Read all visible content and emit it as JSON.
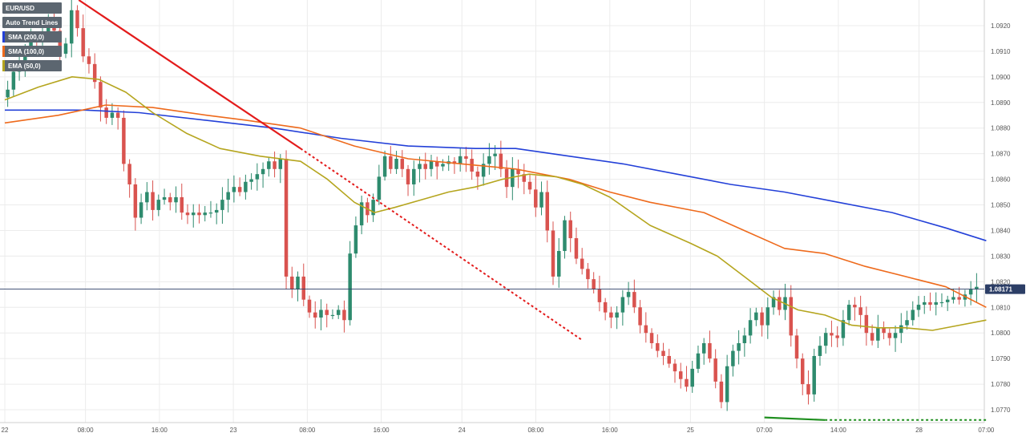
{
  "colors": {
    "up": "#2e8b6e",
    "down": "#d9534f",
    "sma200": "#2340d8",
    "sma100": "#ee6a1c",
    "ema50": "#b5a51e",
    "trend_main": "#e31b1b",
    "support": "#1f8f1f",
    "current": "#2c3e66",
    "grid": "#ececec"
  },
  "legend": [
    {
      "label": "EUR/USD",
      "color": ""
    },
    {
      "label": "Auto Trend Lines",
      "color": ""
    },
    {
      "label": "SMA (200,0)",
      "color": "#2340d8"
    },
    {
      "label": "SMA (100,0)",
      "color": "#ee6a1c"
    },
    {
      "label": "EMA (50,0)",
      "color": "#b5a51e"
    }
  ],
  "current_price_label": "1.08171",
  "chart_data": {
    "type": "line",
    "ylim": [
      1.0765,
      1.093
    ],
    "xlim": [
      0,
      145
    ],
    "x_ticks": [
      {
        "x": 0,
        "label": "22"
      },
      {
        "x": 12,
        "label": "08:00"
      },
      {
        "x": 23,
        "label": "16:00"
      },
      {
        "x": 34,
        "label": "23"
      },
      {
        "x": 45,
        "label": "08:00"
      },
      {
        "x": 56,
        "label": "16:00"
      },
      {
        "x": 68,
        "label": "24"
      },
      {
        "x": 79,
        "label": "08:00"
      },
      {
        "x": 90,
        "label": "16:00"
      },
      {
        "x": 102,
        "label": "25"
      },
      {
        "x": 113,
        "label": "07:00"
      },
      {
        "x": 124,
        "label": "14:00"
      },
      {
        "x": 136,
        "label": "28"
      },
      {
        "x": 146,
        "label": "07:00"
      }
    ],
    "y_ticks": [
      1.077,
      1.078,
      1.079,
      1.08,
      1.081,
      1.082,
      1.083,
      1.084,
      1.085,
      1.086,
      1.087,
      1.088,
      1.089,
      1.09,
      1.091,
      1.092
    ],
    "y_tick_labels": [
      "1.0770",
      "1.0780",
      "1.0790",
      "1.0800",
      "1.0810",
      "1.0820",
      "1.0830",
      "1.0840",
      "1.0850",
      "1.0860",
      "1.0870",
      "1.0880",
      "1.0890",
      "1.0900",
      "1.0910",
      "1.0920"
    ],
    "current_price": 1.08171,
    "candles_close": [
      1.0895,
      1.0902,
      1.0905,
      1.0911,
      1.0915,
      1.0914,
      1.0916,
      1.0921,
      1.0918,
      1.0909,
      1.0913,
      1.0926,
      1.0919,
      1.0908,
      1.0905,
      1.0898,
      1.0888,
      1.0884,
      1.0886,
      1.0884,
      1.0866,
      1.0858,
      1.0845,
      1.0851,
      1.0855,
      1.0848,
      1.0852,
      1.0853,
      1.0851,
      1.0853,
      1.0847,
      1.0846,
      1.0847,
      1.0846,
      1.0847,
      1.0847,
      1.0848,
      1.0852,
      1.0855,
      1.0857,
      1.0855,
      1.0859,
      1.086,
      1.0862,
      1.0864,
      1.0867,
      1.0864,
      1.0868,
      1.0822,
      1.0817,
      1.0822,
      1.0813,
      1.0808,
      1.0806,
      1.0809,
      1.0807,
      1.0807,
      1.0809,
      1.0805,
      1.0831,
      1.0842,
      1.0851,
      1.0846,
      1.0852,
      1.0861,
      1.0869,
      1.0864,
      1.0868,
      1.0864,
      1.0858,
      1.0864,
      1.0866,
      1.0864,
      1.0867,
      1.0865,
      1.0866,
      1.0867,
      1.0866,
      1.0869,
      1.0868,
      1.0863,
      1.0861,
      1.0866,
      1.0869,
      1.087,
      1.0864,
      1.0857,
      1.0864,
      1.0862,
      1.0859,
      1.0856,
      1.0849,
      1.0855,
      1.084,
      1.0822,
      1.0832,
      1.0844,
      1.0837,
      1.0829,
      1.0825,
      1.0821,
      1.0817,
      1.0812,
      1.0808,
      1.0806,
      1.0808,
      1.0814,
      1.0816,
      1.081,
      1.0803,
      1.08,
      1.0796,
      1.0793,
      1.0791,
      1.0788,
      1.0785,
      1.0782,
      1.0779,
      1.0786,
      1.0792,
      1.0796,
      1.079,
      1.0781,
      1.0773,
      1.0787,
      1.0793,
      1.0796,
      1.0799,
      1.0805,
      1.0808,
      1.0803,
      1.081,
      1.0814,
      1.0809,
      1.0814,
      1.0799,
      1.079,
      1.078,
      1.0776,
      1.0791,
      1.0795,
      1.08,
      1.0799,
      1.0798,
      1.0805,
      1.0811,
      1.081,
      1.0807,
      1.08,
      1.0797,
      1.0802,
      1.08,
      1.0798,
      1.08,
      1.0803,
      1.0805,
      1.0809,
      1.0811,
      1.0812,
      1.0811,
      1.0812,
      1.0812,
      1.0813,
      1.0814,
      1.0813,
      1.0815,
      1.0817,
      1.0818
    ],
    "series": [
      {
        "name": "SMA (200,0)",
        "color": "#2340d8",
        "points": [
          [
            0,
            1.0887
          ],
          [
            12,
            1.0887
          ],
          [
            20,
            1.0886
          ],
          [
            30,
            1.0883
          ],
          [
            40,
            1.088
          ],
          [
            50,
            1.0876
          ],
          [
            60,
            1.0873
          ],
          [
            70,
            1.0872
          ],
          [
            76,
            1.0872
          ],
          [
            84,
            1.0869
          ],
          [
            92,
            1.0866
          ],
          [
            100,
            1.0862
          ],
          [
            108,
            1.0858
          ],
          [
            116,
            1.0855
          ],
          [
            124,
            1.0851
          ],
          [
            132,
            1.0847
          ],
          [
            140,
            1.0841
          ],
          [
            146,
            1.0836
          ]
        ]
      },
      {
        "name": "SMA (100,0)",
        "color": "#ee6a1c",
        "points": [
          [
            0,
            1.0882
          ],
          [
            8,
            1.0885
          ],
          [
            15,
            1.0889
          ],
          [
            22,
            1.0888
          ],
          [
            30,
            1.0885
          ],
          [
            36,
            1.0883
          ],
          [
            44,
            1.088
          ],
          [
            52,
            1.0873
          ],
          [
            60,
            1.0868
          ],
          [
            68,
            1.0866
          ],
          [
            76,
            1.0864
          ],
          [
            84,
            1.086
          ],
          [
            90,
            1.0855
          ],
          [
            96,
            1.0851
          ],
          [
            104,
            1.0847
          ],
          [
            110,
            1.084
          ],
          [
            116,
            1.0833
          ],
          [
            122,
            1.0831
          ],
          [
            128,
            1.0826
          ],
          [
            134,
            1.0822
          ],
          [
            140,
            1.0818
          ],
          [
            146,
            1.081
          ]
        ]
      },
      {
        "name": "EMA (50,0)",
        "color": "#b5a51e",
        "points": [
          [
            0,
            1.0891
          ],
          [
            5,
            1.0896
          ],
          [
            10,
            1.09
          ],
          [
            14,
            1.0899
          ],
          [
            18,
            1.0894
          ],
          [
            22,
            1.0886
          ],
          [
            27,
            1.0878
          ],
          [
            32,
            1.0872
          ],
          [
            38,
            1.0869
          ],
          [
            44,
            1.0867
          ],
          [
            48,
            1.086
          ],
          [
            52,
            1.0851
          ],
          [
            55,
            1.0847
          ],
          [
            58,
            1.0849
          ],
          [
            62,
            1.0852
          ],
          [
            66,
            1.0855
          ],
          [
            70,
            1.0857
          ],
          [
            74,
            1.086
          ],
          [
            78,
            1.0862
          ],
          [
            82,
            1.0861
          ],
          [
            86,
            1.0858
          ],
          [
            90,
            1.0853
          ],
          [
            96,
            1.0842
          ],
          [
            102,
            1.0835
          ],
          [
            106,
            1.083
          ],
          [
            110,
            1.0822
          ],
          [
            114,
            1.0814
          ],
          [
            118,
            1.0809
          ],
          [
            122,
            1.0807
          ],
          [
            126,
            1.0803
          ],
          [
            130,
            1.0802
          ],
          [
            134,
            1.0802
          ],
          [
            138,
            1.0801
          ],
          [
            142,
            1.0803
          ],
          [
            146,
            1.0805
          ]
        ]
      }
    ],
    "trend_lines": [
      {
        "style": "solid",
        "color": "#e31b1b",
        "from": [
          11,
          1.093
        ],
        "to": [
          44,
          1.0872
        ]
      },
      {
        "style": "dotted",
        "color": "#e31b1b",
        "from": [
          44,
          1.0872
        ],
        "to": [
          86,
          1.0797
        ]
      },
      {
        "style": "solid",
        "color": "#1f8f1f",
        "from": [
          113,
          1.0767
        ],
        "to": [
          122,
          1.0766
        ]
      },
      {
        "style": "dotted",
        "color": "#1f8f1f",
        "from": [
          122,
          1.0766
        ],
        "to": [
          146,
          1.0766
        ]
      }
    ]
  }
}
